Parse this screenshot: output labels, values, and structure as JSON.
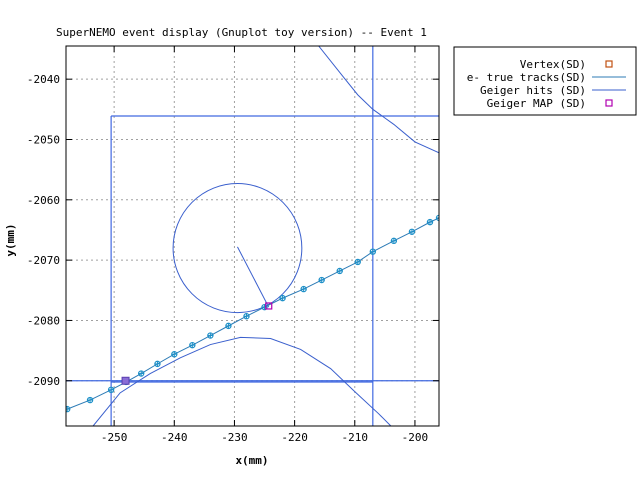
{
  "chart_data": {
    "type": "scatter",
    "title": "SuperNEMO event display (Gnuplot toy version) -- Event 1",
    "xlabel": "x(mm)",
    "ylabel": "y(mm)",
    "xlim": [
      -258,
      -196
    ],
    "ylim": [
      -2097.5,
      -2034.5
    ],
    "xticks": [
      -250,
      -240,
      -230,
      -220,
      -210,
      -200
    ],
    "yticks": [
      -2040,
      -2050,
      -2060,
      -2070,
      -2080,
      -2090
    ],
    "xtick_labels": [
      "-250",
      "-240",
      "-230",
      "-220",
      "-210",
      "-200"
    ],
    "ytick_labels": [
      "-2040",
      "-2050",
      "-2060",
      "-2070",
      "-2080",
      "-2090"
    ],
    "grid": true,
    "legend_position": "outside-top-right",
    "legend": [
      {
        "label": "Vertex(SD)",
        "style": "square",
        "color": "#c05010"
      },
      {
        "label": "e- true tracks(SD)",
        "style": "line",
        "color": "#2c7bb6"
      },
      {
        "label": "Geiger hits (SD)",
        "style": "line",
        "color": "#3a5fcd"
      },
      {
        "label": "Geiger MAP (SD)",
        "style": "square",
        "color": "#b000b0"
      }
    ],
    "colors": {
      "track": "#2c7bb6",
      "marker": "#1e90c8",
      "geiger": "#3a5fcd",
      "map": "#b000b0",
      "vertex": "#c05010",
      "frame": "#4169e1"
    },
    "series": [
      {
        "name": "e- true tracks(SD)",
        "style": "line+markers",
        "x": [
          -257.8,
          -254,
          -250.5,
          -248,
          -245.5,
          -242.8,
          -240,
          -237,
          -234,
          -231,
          -228,
          -225,
          -222,
          -218.5,
          -215.5,
          -212.5,
          -209.5,
          -207,
          -203.5,
          -200.5,
          -197.5,
          -196
        ],
        "y": [
          -2094.7,
          -2093.2,
          -2091.5,
          -2090.2,
          -2088.8,
          -2087.2,
          -2085.6,
          -2084.1,
          -2082.5,
          -2080.9,
          -2079.3,
          -2077.8,
          -2076.3,
          -2074.8,
          -2073.3,
          -2071.8,
          -2070.3,
          -2068.6,
          -2066.8,
          -2065.3,
          -2063.7,
          -2063.0
        ]
      },
      {
        "name": "Geiger hits (SD)",
        "style": "circle",
        "cx": -229.5,
        "cy": -2068.0,
        "r": 10.7
      },
      {
        "name": "Geiger hits (SD)",
        "style": "segment",
        "x": [
          -229.5,
          -224.3
        ],
        "y": [
          -2067.8,
          -2077.8
        ]
      },
      {
        "name": "Geiger hits (SD)",
        "style": "arc",
        "x": [
          -253.5,
          -249,
          -244,
          -239,
          -234,
          -229,
          -224,
          -219,
          -214,
          -210,
          -206,
          -204
        ],
        "y": [
          -2097.5,
          -2092,
          -2088.8,
          -2086.2,
          -2084,
          -2082.8,
          -2083,
          -2084.8,
          -2088,
          -2091.8,
          -2095.5,
          -2097.5
        ]
      },
      {
        "name": "Geiger hits (SD)",
        "style": "arc",
        "x": [
          -216,
          -212,
          -209.5,
          -207,
          -203.5,
          -200,
          -196
        ],
        "y": [
          -2034.5,
          -2039.5,
          -2042.6,
          -2045,
          -2047.5,
          -2050.4,
          -2052.2
        ]
      },
      {
        "name": "Geiger MAP (SD)",
        "style": "square",
        "x": [
          -224.3
        ],
        "y": [
          -2077.6
        ]
      },
      {
        "name": "Vertex(SD)",
        "style": "square",
        "x": [
          -248.1
        ],
        "y": [
          -2090.0
        ]
      }
    ],
    "frame_lines": [
      {
        "x": [
          -250.5,
          -196
        ],
        "y": [
          -2046.1,
          -2046.1
        ]
      },
      {
        "x": [
          -250.5,
          -250.5
        ],
        "y": [
          -2046.1,
          -2097.5
        ]
      },
      {
        "x": [
          -207,
          -207
        ],
        "y": [
          -2034.5,
          -2097.5
        ]
      },
      {
        "x": [
          -258,
          -196
        ],
        "y": [
          -2090.0,
          -2090.0
        ]
      },
      {
        "x": [
          -250.5,
          -207
        ],
        "y": [
          -2090.2,
          -2090.2
        ]
      }
    ]
  }
}
